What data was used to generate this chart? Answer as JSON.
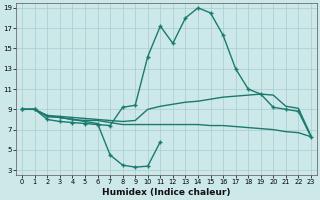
{
  "x_min": 0,
  "x_max": 23,
  "y_min": 3,
  "y_max": 19,
  "background_color": "#cde8e8",
  "grid_color": "#a8cccc",
  "line_color": "#1a7a6e",
  "xlabel": "Humidex (Indice chaleur)",
  "yticks": [
    3,
    5,
    7,
    9,
    11,
    13,
    15,
    17,
    19
  ],
  "xticks": [
    0,
    1,
    2,
    3,
    4,
    5,
    6,
    7,
    8,
    9,
    10,
    11,
    12,
    13,
    14,
    15,
    16,
    17,
    18,
    19,
    20,
    21,
    22,
    23
  ],
  "curve_main_x": [
    0,
    1,
    2,
    3,
    4,
    5,
    6,
    7,
    8,
    9,
    10,
    11,
    12,
    13,
    14,
    15,
    16,
    17,
    18,
    19,
    20,
    21,
    22,
    23
  ],
  "curve_main_y": [
    9,
    9,
    8,
    7.8,
    7.7,
    7.6,
    7.5,
    7.4,
    9.2,
    9.4,
    14.2,
    17.2,
    15.5,
    18,
    19,
    18.5,
    16.3,
    13,
    11,
    10.5,
    9.2,
    9,
    8.8,
    6.3
  ],
  "curve_flat_x": [
    0,
    1,
    2,
    3,
    4,
    5,
    6,
    7,
    8,
    9,
    10,
    11,
    12,
    13,
    14,
    15,
    16,
    17,
    18,
    19,
    20,
    21,
    22,
    23
  ],
  "curve_flat_y": [
    9,
    9,
    8.3,
    8.2,
    8.0,
    7.9,
    7.9,
    7.7,
    7.5,
    7.5,
    7.5,
    7.5,
    7.5,
    7.5,
    7.5,
    7.4,
    7.4,
    7.3,
    7.2,
    7.1,
    7.0,
    6.8,
    6.7,
    6.3
  ],
  "curve_dip_x": [
    0,
    1,
    2,
    3,
    4,
    5,
    6,
    7,
    8,
    9,
    10,
    11
  ],
  "curve_dip_y": [
    9,
    9,
    8.3,
    8.2,
    8.0,
    7.8,
    7.6,
    4.5,
    3.5,
    3.3,
    3.4,
    5.8
  ],
  "curve_rise_x": [
    0,
    1,
    2,
    3,
    4,
    5,
    6,
    7,
    8,
    9,
    10,
    11,
    12,
    13,
    14,
    15,
    16,
    17,
    18,
    19,
    20,
    21,
    22,
    23
  ],
  "curve_rise_y": [
    9,
    9,
    8.4,
    8.3,
    8.2,
    8.1,
    8.0,
    7.9,
    7.8,
    7.9,
    9.0,
    9.3,
    9.5,
    9.7,
    9.8,
    10.0,
    10.2,
    10.3,
    10.4,
    10.5,
    10.4,
    9.3,
    9.1,
    6.4
  ]
}
